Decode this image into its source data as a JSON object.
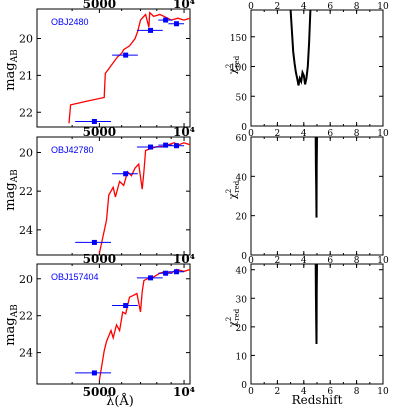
{
  "figure": {
    "left_ylabel": "mag",
    "left_ylabel_sub": "AB",
    "left_xlabel": "λ(Å)",
    "right_xlabel": "Redshift",
    "right_ylabel": "χ",
    "right_ylabel_sup": "2",
    "right_ylabel_sub": "red"
  },
  "chart_data": [
    {
      "type": "line",
      "panel": "sed",
      "object_label": "OBJ2480",
      "title": "",
      "xlabel": "",
      "ylabel": "mag_AB",
      "x_scale": "log",
      "xlim": [
        3000,
        10500
      ],
      "ylim": [
        22.4,
        19.2
      ],
      "x_ticks": [
        {
          "value": 5000,
          "label": "5000"
        },
        {
          "value": 10000,
          "label": "10⁴"
        }
      ],
      "x_ticks_position": "top",
      "y_ticks": [
        20,
        21,
        22
      ],
      "colors": {
        "model": "#ff0000",
        "photometry": "#0000ff"
      },
      "series": [
        {
          "kind": "model",
          "x": [
            3900,
            3950,
            4500,
            5200,
            5250,
            5800,
            6000,
            6100,
            6400,
            6700,
            6850,
            7000,
            7300,
            7500,
            7550,
            7800,
            8200,
            8500,
            9000,
            9500,
            10000,
            10500
          ],
          "y": [
            22.3,
            21.8,
            21.7,
            21.6,
            20.95,
            20.5,
            20.4,
            20.3,
            20.2,
            20.0,
            19.8,
            19.5,
            19.35,
            19.7,
            19.3,
            19.4,
            19.35,
            19.4,
            19.5,
            19.45,
            19.5,
            19.45
          ]
        },
        {
          "kind": "photometry",
          "x": [
            4800,
            6200,
            7600,
            8600,
            9400
          ],
          "y": [
            22.25,
            20.45,
            19.78,
            19.5,
            19.6
          ],
          "xerr": [
            700,
            650,
            800,
            500,
            600
          ],
          "yerr": [
            0.05,
            0.05,
            0.05,
            0.05,
            0.05
          ]
        }
      ]
    },
    {
      "type": "line",
      "panel": "chi2",
      "title": "",
      "xlabel": "",
      "ylabel": "χ²_red",
      "xlim": [
        0,
        10
      ],
      "ylim": [
        0,
        195
      ],
      "x_ticks": [
        0,
        2,
        4,
        6,
        8,
        10
      ],
      "x_ticks_position": "top",
      "y_ticks": [
        0,
        50,
        100,
        150
      ],
      "series": [
        {
          "x": [
            3.0,
            3.1,
            3.2,
            3.3,
            3.4,
            3.5,
            3.6,
            3.7,
            3.8,
            3.9,
            4.0,
            4.1,
            4.2,
            4.3,
            4.4,
            4.5
          ],
          "y": [
            195,
            160,
            125,
            105,
            90,
            80,
            68,
            80,
            75,
            90,
            85,
            70,
            80,
            100,
            140,
            195
          ]
        }
      ]
    },
    {
      "type": "line",
      "panel": "sed",
      "object_label": "OBJ42780",
      "title": "",
      "xlabel": "",
      "ylabel": "mag_AB",
      "x_scale": "log",
      "xlim": [
        3000,
        10500
      ],
      "ylim": [
        25.3,
        19.2
      ],
      "x_ticks": [
        {
          "value": 5000,
          "label": "5000"
        },
        {
          "value": 10000,
          "label": "10⁴"
        }
      ],
      "x_ticks_position": "top",
      "y_ticks": [
        20,
        22,
        24
      ],
      "colors": {
        "model": "#ff0000",
        "photometry": "#0000ff"
      },
      "series": [
        {
          "kind": "model",
          "x": [
            5000,
            5300,
            5400,
            5600,
            5700,
            5900,
            6100,
            6300,
            6500,
            6700,
            6900,
            7100,
            7200,
            7300,
            7600,
            8000,
            8400,
            8800,
            9200,
            9600,
            10000,
            10500
          ],
          "y": [
            25.2,
            23.5,
            22.2,
            21.8,
            22.3,
            21.5,
            21.7,
            21.0,
            21.2,
            20.8,
            20.6,
            21.9,
            21.0,
            19.9,
            19.8,
            19.7,
            19.7,
            19.6,
            19.5,
            19.6,
            19.5,
            19.6
          ]
        },
        {
          "kind": "photometry",
          "x": [
            4800,
            6200,
            7600,
            8600,
            9400
          ],
          "y": [
            24.65,
            21.1,
            19.72,
            19.62,
            19.65
          ],
          "xerr": [
            700,
            650,
            800,
            500,
            600
          ],
          "yerr": [
            0.05,
            0.05,
            0.05,
            0.05,
            0.05
          ]
        }
      ]
    },
    {
      "type": "line",
      "panel": "chi2",
      "title": "",
      "xlabel": "",
      "ylabel": "χ²_red",
      "xlim": [
        0,
        10
      ],
      "ylim": [
        0,
        60
      ],
      "x_ticks": [
        0,
        2,
        4,
        6,
        8,
        10
      ],
      "x_ticks_position": "top",
      "y_ticks": [
        0,
        20,
        40,
        60
      ],
      "series": [
        {
          "x": [
            4.9,
            4.92,
            4.94,
            4.96,
            4.97,
            4.98,
            5.0
          ],
          "y": [
            60,
            45,
            35,
            19,
            35,
            45,
            60
          ]
        }
      ]
    },
    {
      "type": "line",
      "panel": "sed",
      "object_label": "OBJ157404",
      "title": "",
      "xlabel": "λ(Å)",
      "ylabel": "mag_AB",
      "x_scale": "log",
      "xlim": [
        3000,
        10500
      ],
      "ylim": [
        25.7,
        19.2
      ],
      "x_ticks": [
        {
          "value": 5000,
          "label": "5000"
        },
        {
          "value": 10000,
          "label": "10⁴"
        }
      ],
      "x_ticks_position": "both",
      "y_ticks": [
        20,
        22,
        24
      ],
      "colors": {
        "model": "#ff0000",
        "photometry": "#0000ff"
      },
      "series": [
        {
          "kind": "model",
          "x": [
            5000,
            5200,
            5300,
            5500,
            5600,
            5750,
            5900,
            6050,
            6200,
            6400,
            6600,
            6800,
            7000,
            7100,
            7200,
            7400,
            7800,
            8200,
            8600,
            9000,
            9400,
            10000,
            10500
          ],
          "y": [
            25.5,
            23.9,
            23.4,
            22.8,
            23.2,
            22.5,
            22.8,
            21.8,
            21.9,
            21.0,
            20.9,
            20.8,
            21.8,
            20.7,
            20.1,
            20.0,
            19.9,
            19.7,
            19.6,
            19.7,
            19.5,
            19.6,
            19.5
          ]
        },
        {
          "kind": "photometry",
          "x": [
            4800,
            6200,
            7600,
            8600,
            9400
          ],
          "y": [
            25.1,
            21.45,
            19.95,
            19.7,
            19.62
          ],
          "xerr": [
            700,
            650,
            800,
            500,
            600
          ],
          "yerr": [
            0.05,
            0.05,
            0.05,
            0.05,
            0.05
          ]
        }
      ]
    },
    {
      "type": "line",
      "panel": "chi2",
      "title": "",
      "xlabel": "Redshift",
      "ylabel": "χ²_red",
      "xlim": [
        0,
        10
      ],
      "ylim": [
        0,
        42
      ],
      "x_ticks": [
        0,
        2,
        4,
        6,
        8,
        10
      ],
      "x_ticks_position": "both",
      "y_ticks": [
        0,
        10,
        20,
        30,
        40
      ],
      "series": [
        {
          "x": [
            4.9,
            4.92,
            4.94,
            4.96,
            4.97,
            4.98,
            5.0
          ],
          "y": [
            42,
            32,
            22,
            14,
            22,
            32,
            42
          ]
        }
      ]
    }
  ]
}
